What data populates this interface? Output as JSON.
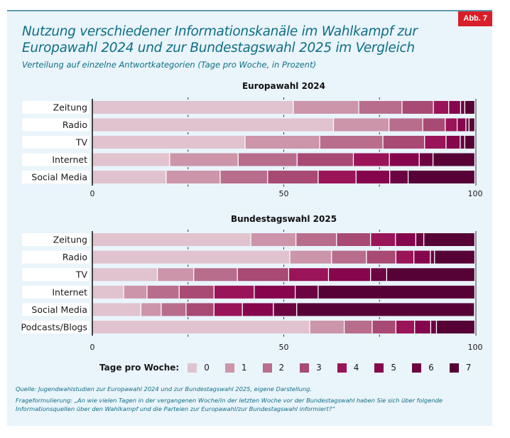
{
  "figure": {
    "badge": "Abb. 7",
    "title_line1": "Nutzung verschiedener Informationskanäle im Wahlkampf zur",
    "title_line2": "Europawahl 2024 und zur Bundestagswahl 2025 im Vergleich",
    "subtitle": "Verteilung auf einzelne Antwortkategorien (Tage pro Woche, in Prozent)",
    "source": "Quelle: Jugendwahlstudien zur Europawahl 2024 und zur Bundestagswahl 2025, eigene Darstellung.",
    "question": "Frageformulierung: „An wie vielen Tagen in der vergangenen Woche/in der letzten Woche vor der Bundestagswahl haben Sie sich über folgende Informationsquellen über den Wahlkampf und die Parteien zur Europawahl/zur Bundestagswahl informiert?“"
  },
  "legend": {
    "title": "Tage pro Woche:",
    "items": [
      {
        "label": "0",
        "color": "#e0c3ce"
      },
      {
        "label": "1",
        "color": "#cc95aa"
      },
      {
        "label": "2",
        "color": "#b86d8c"
      },
      {
        "label": "3",
        "color": "#a84a73"
      },
      {
        "label": "4",
        "color": "#9a1459"
      },
      {
        "label": "5",
        "color": "#85064d"
      },
      {
        "label": "6",
        "color": "#6c0442"
      },
      {
        "label": "7",
        "color": "#560236"
      }
    ]
  },
  "chart_data": [
    {
      "type": "bar",
      "orientation": "horizontal",
      "stacked": true,
      "title": "Europawahl 2024",
      "xlabel": "",
      "ylabel": "",
      "xlim": [
        0,
        100
      ],
      "xticks": [
        0,
        50,
        100
      ],
      "minor_ticks": [
        25,
        75
      ],
      "categories": [
        "Zeitung",
        "Radio",
        "TV",
        "Internet",
        "Social Media"
      ],
      "series": [
        {
          "name": "0",
          "values": [
            52.6,
            63.1,
            40.0,
            20.3,
            19.4
          ]
        },
        {
          "name": "1",
          "values": [
            17.1,
            14.5,
            19.5,
            17.9,
            14.1
          ]
        },
        {
          "name": "2",
          "values": [
            11.3,
            8.8,
            16.5,
            15.4,
            12.4
          ]
        },
        {
          "name": "3",
          "values": [
            8.2,
            5.9,
            10.9,
            14.7,
            13.2
          ]
        },
        {
          "name": "4",
          "values": [
            4.0,
            3.1,
            5.6,
            9.4,
            9.9
          ]
        },
        {
          "name": "5",
          "values": [
            3.1,
            2.3,
            3.7,
            7.8,
            8.8
          ]
        },
        {
          "name": "6",
          "values": [
            1.1,
            0.8,
            1.2,
            3.6,
            4.8
          ]
        },
        {
          "name": "7",
          "values": [
            2.6,
            1.5,
            2.6,
            10.9,
            17.4
          ]
        }
      ]
    },
    {
      "type": "bar",
      "orientation": "horizontal",
      "stacked": true,
      "title": "Bundestagswahl 2025",
      "xlabel": "",
      "ylabel": "",
      "xlim": [
        0,
        100
      ],
      "xticks": [
        0,
        50,
        100
      ],
      "minor_ticks": [
        25,
        75
      ],
      "categories": [
        "Zeitung",
        "Radio",
        "TV",
        "Internet",
        "Social Media",
        "Podcasts/Blogs"
      ],
      "series": [
        {
          "name": "0",
          "values": [
            41.5,
            51.7,
            17.1,
            8.3,
            12.8,
            56.9
          ]
        },
        {
          "name": "1",
          "values": [
            11.8,
            10.9,
            9.5,
            6.1,
            5.3,
            9.0
          ]
        },
        {
          "name": "2",
          "values": [
            10.6,
            9.1,
            11.4,
            8.4,
            6.5,
            7.3
          ]
        },
        {
          "name": "3",
          "values": [
            8.9,
            7.7,
            13.4,
            9.1,
            7.3,
            6.2
          ]
        },
        {
          "name": "4",
          "values": [
            6.5,
            4.7,
            10.4,
            10.5,
            7.4,
            4.9
          ]
        },
        {
          "name": "5",
          "values": [
            5.3,
            4.3,
            11.0,
            10.7,
            8.1,
            4.2
          ]
        },
        {
          "name": "6",
          "values": [
            2.1,
            1.1,
            4.2,
            6.0,
            6.1,
            1.5
          ]
        },
        {
          "name": "7",
          "values": [
            13.3,
            10.5,
            23.0,
            40.9,
            46.4,
            10.0
          ]
        }
      ]
    }
  ]
}
